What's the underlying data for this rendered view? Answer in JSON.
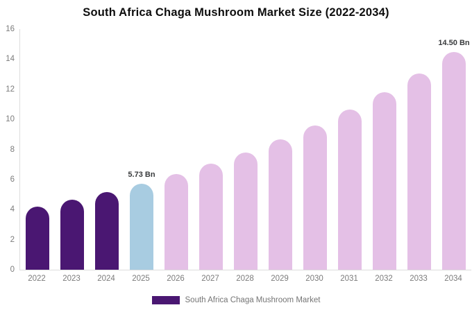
{
  "title": "South Africa Chaga Mushroom Market Size (2022-2034)",
  "legend": {
    "label": "South Africa Chaga Mushroom Market",
    "swatch_color": "#4a1772"
  },
  "colors": {
    "historical": "#4a1772",
    "base_year": "#a8cce1",
    "forecast": "#e4c0e6",
    "axis_line": "#dcdcdc",
    "tick_text": "#7b7b7b",
    "annotation_text": "#37393b"
  },
  "chart_data": {
    "type": "bar",
    "title": "South Africa Chaga Mushroom Market Size (2022-2034)",
    "categories": [
      "2022",
      "2023",
      "2024",
      "2025",
      "2026",
      "2027",
      "2028",
      "2029",
      "2030",
      "2031",
      "2032",
      "2033",
      "2034"
    ],
    "values": [
      4.2,
      4.65,
      5.17,
      5.73,
      6.35,
      7.05,
      7.8,
      8.65,
      9.6,
      10.65,
      11.8,
      13.05,
      14.5
    ],
    "unit": "Bn",
    "ylim": [
      0,
      16
    ],
    "yticks": [
      0,
      2,
      4,
      6,
      8,
      10,
      12,
      14,
      16
    ],
    "grid": false,
    "legend_position": "bottom",
    "bar_colors": [
      "#4a1772",
      "#4a1772",
      "#4a1772",
      "#a8cce1",
      "#e4c0e6",
      "#e4c0e6",
      "#e4c0e6",
      "#e4c0e6",
      "#e4c0e6",
      "#e4c0e6",
      "#e4c0e6",
      "#e4c0e6",
      "#e4c0e6"
    ],
    "annotations": [
      {
        "index": 3,
        "text": "5.73 Bn"
      },
      {
        "index": 12,
        "text": "14.50 Bn"
      }
    ]
  }
}
